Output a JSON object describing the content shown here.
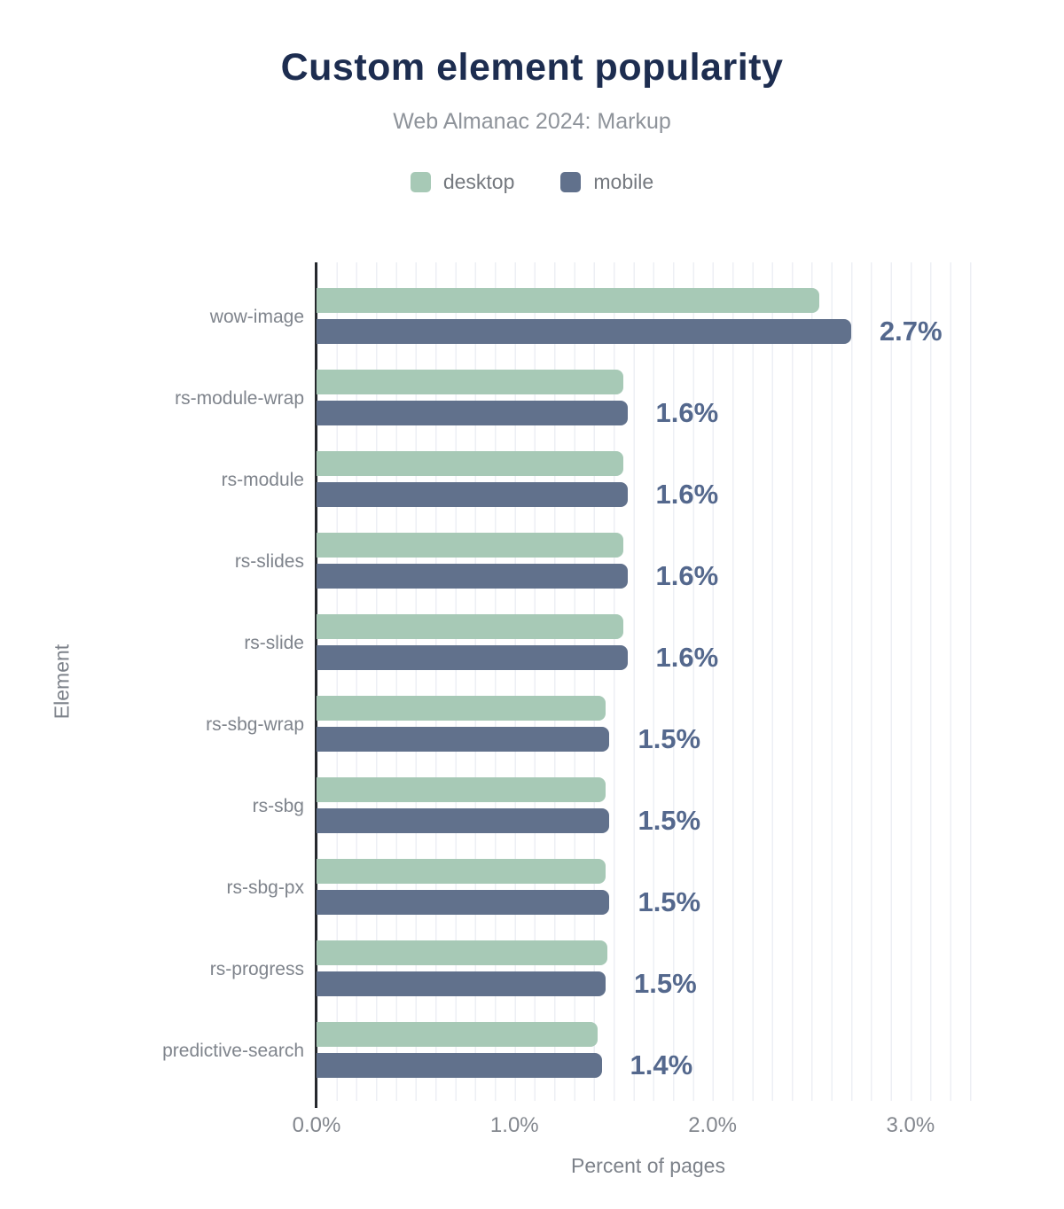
{
  "header": {
    "title": "Custom element popularity",
    "subtitle": "Web Almanac 2024: Markup"
  },
  "legend": {
    "items": [
      {
        "label": "desktop",
        "color": "#a7c9b6"
      },
      {
        "label": "mobile",
        "color": "#61718c"
      }
    ]
  },
  "colors": {
    "title": "#1d2d50",
    "subtitle": "#8e939a",
    "desktop_bar": "#a7c9b6",
    "mobile_bar": "#61718c",
    "value_label": "#54688d",
    "axis_line": "#26292e",
    "gridline": "#edeff4",
    "tick_text": "#83878e",
    "category_text": "#7f848c"
  },
  "chart_data": {
    "type": "bar",
    "orientation": "horizontal",
    "title": "Custom element popularity",
    "subtitle": "Web Almanac 2024: Markup",
    "xlabel": "Percent of pages",
    "ylabel": "Element",
    "categories": [
      "wow-image",
      "rs-module-wrap",
      "rs-module",
      "rs-slides",
      "rs-slide",
      "rs-sbg-wrap",
      "rs-sbg",
      "rs-sbg-px",
      "rs-progress",
      "predictive-search"
    ],
    "series": [
      {
        "name": "desktop",
        "values": [
          2.54,
          1.55,
          1.55,
          1.55,
          1.55,
          1.46,
          1.46,
          1.46,
          1.47,
          1.42
        ]
      },
      {
        "name": "mobile",
        "values": [
          2.7,
          1.57,
          1.57,
          1.57,
          1.57,
          1.48,
          1.48,
          1.48,
          1.46,
          1.44
        ]
      }
    ],
    "value_labels": [
      "2.7%",
      "1.6%",
      "1.6%",
      "1.6%",
      "1.6%",
      "1.5%",
      "1.5%",
      "1.5%",
      "1.5%",
      "1.4%"
    ],
    "xlim": [
      0,
      3.35
    ],
    "xtick_labels": [
      "0.0%",
      "1.0%",
      "2.0%",
      "3.0%"
    ],
    "xtick_values": [
      0,
      1,
      2,
      3
    ],
    "grid": "vertical minor gridlines every 0.1%",
    "legend_position": "top center"
  }
}
